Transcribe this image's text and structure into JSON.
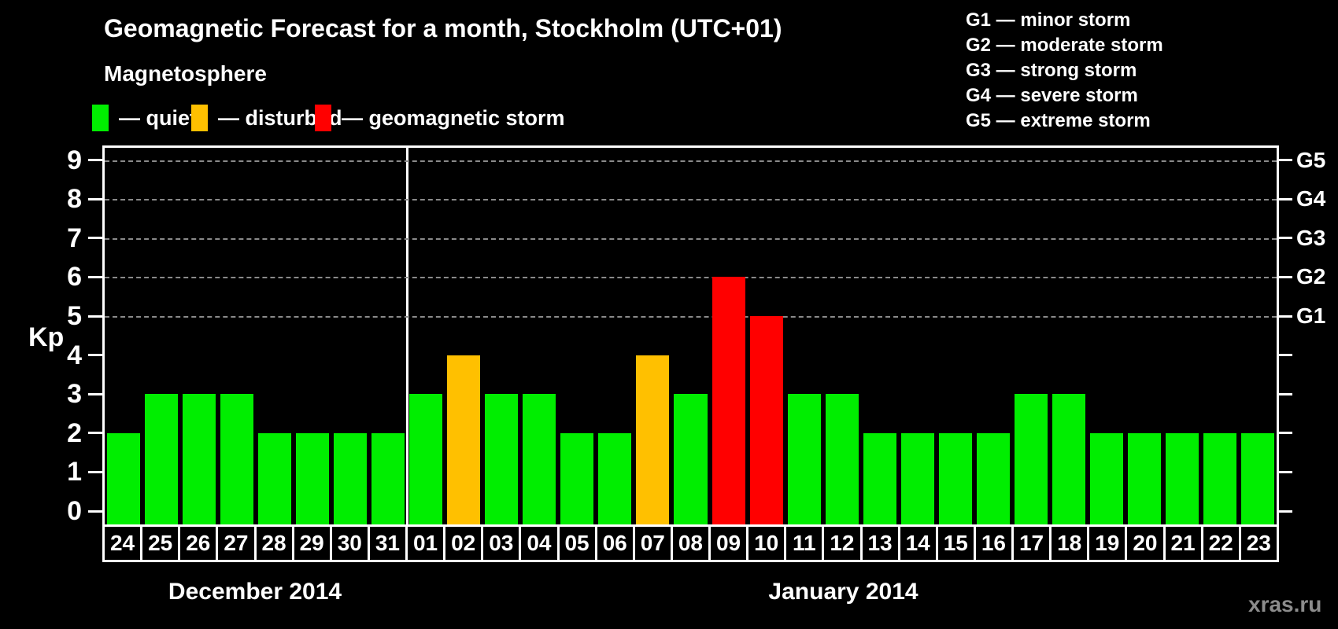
{
  "header": {
    "title": "Geomagnetic Forecast for a month, Stockholm (UTC+01)",
    "magnetosphere_label": "Magnetosphere",
    "magnetosphere_legend": [
      {
        "key": "quiet",
        "text": "— quiet"
      },
      {
        "key": "disturbed",
        "text": "— disturbed"
      },
      {
        "key": "storm",
        "text": "— geomagnetic storm"
      }
    ],
    "g_scale_legend": [
      {
        "code": "G1",
        "desc": "minor storm"
      },
      {
        "code": "G2",
        "desc": "moderate storm"
      },
      {
        "code": "G3",
        "desc": "strong storm"
      },
      {
        "code": "G4",
        "desc": "severe storm"
      },
      {
        "code": "G5",
        "desc": "extreme storm"
      }
    ]
  },
  "colors": {
    "quiet": "#00EE00",
    "disturbed": "#FFC000",
    "storm": "#FF0000",
    "axis": "#FFFFFF",
    "grid": "#8A8A8A",
    "watermark_text": "#8C8C8C"
  },
  "chart_data": {
    "type": "bar",
    "title": "Geomagnetic Forecast for a month, Stockholm (UTC+01)",
    "ylabel": "Kp",
    "ylim": [
      0,
      9
    ],
    "yticks": [
      0,
      1,
      2,
      3,
      4,
      5,
      6,
      7,
      8,
      9
    ],
    "gridlines_at": [
      5,
      6,
      7,
      8,
      9
    ],
    "grid": "dashed, only at storm levels 5-9",
    "legend_position": "top",
    "right_axis_labels": [
      {
        "kp": 5,
        "label": "G1"
      },
      {
        "kp": 6,
        "label": "G2"
      },
      {
        "kp": 7,
        "label": "G3"
      },
      {
        "kp": 8,
        "label": "G4"
      },
      {
        "kp": 9,
        "label": "G5"
      }
    ],
    "categories": [
      "24",
      "25",
      "26",
      "27",
      "28",
      "29",
      "30",
      "31",
      "01",
      "02",
      "03",
      "04",
      "05",
      "06",
      "07",
      "08",
      "09",
      "10",
      "11",
      "12",
      "13",
      "14",
      "15",
      "16",
      "17",
      "18",
      "19",
      "20",
      "21",
      "22",
      "23"
    ],
    "values": [
      2,
      3,
      3,
      3,
      2,
      2,
      2,
      2,
      3,
      4,
      3,
      3,
      2,
      2,
      4,
      3,
      6,
      5,
      3,
      3,
      2,
      2,
      2,
      2,
      3,
      3,
      2,
      2,
      2,
      2,
      2
    ],
    "statuses": [
      "quiet",
      "quiet",
      "quiet",
      "quiet",
      "quiet",
      "quiet",
      "quiet",
      "quiet",
      "quiet",
      "disturbed",
      "quiet",
      "quiet",
      "quiet",
      "quiet",
      "disturbed",
      "quiet",
      "storm",
      "storm",
      "quiet",
      "quiet",
      "quiet",
      "quiet",
      "quiet",
      "quiet",
      "quiet",
      "quiet",
      "quiet",
      "quiet",
      "quiet",
      "quiet",
      "quiet"
    ],
    "months": [
      {
        "label": "December 2014",
        "days": 8
      },
      {
        "label": "January 2014",
        "days": 23
      }
    ]
  },
  "watermark": "xras.ru"
}
